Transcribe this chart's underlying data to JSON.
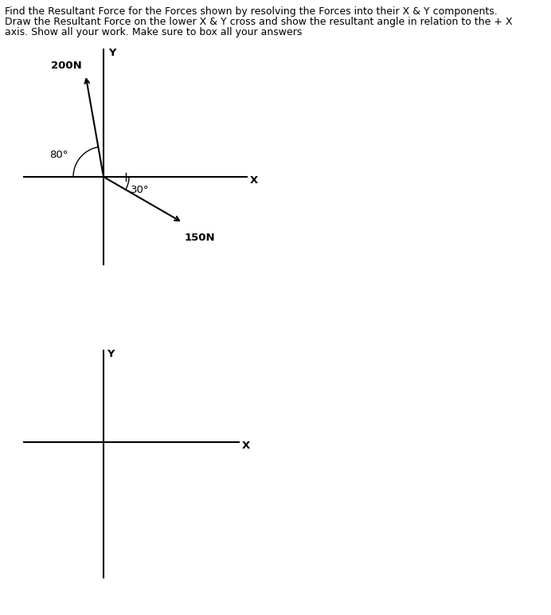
{
  "title_lines": [
    "Find the Resultant Force for the Forces shown by resolving the Forces into their X & Y components.",
    "Draw the Resultant Force on the lower X & Y cross and show the resultant angle in relation to the + X",
    "axis. Show all your work. Make sure to box all your answers"
  ],
  "force1_label": "200N",
  "force1_angle_label": "80°",
  "force2_label": "150N",
  "force2_angle_label": "30°",
  "axis_color": "#000000",
  "arrow_color": "#000000",
  "text_color": "#000000",
  "bg_color": "#ffffff",
  "font_size_title": 9.0,
  "font_size_labels": 9.5
}
